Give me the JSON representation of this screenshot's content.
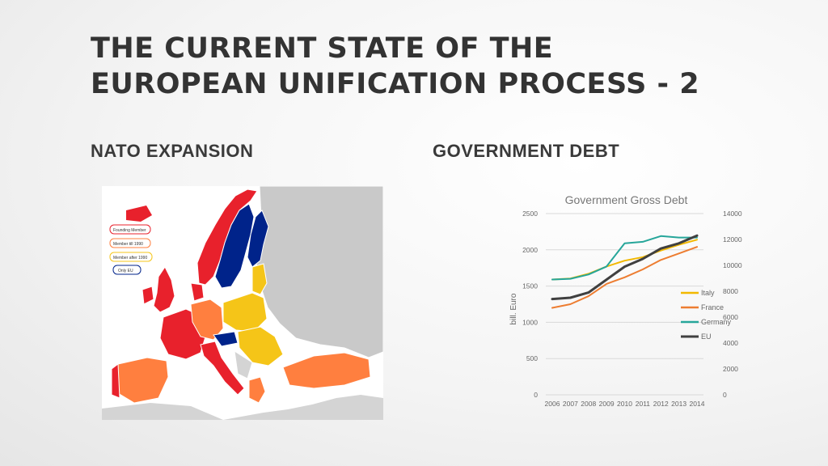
{
  "slide": {
    "title": "THE CURRENT STATE OF THE EUROPEAN UNIFICATION PROCESS - 2",
    "left_heading": "NATO EXPANSION",
    "right_heading": "GOVERNMENT DEBT"
  },
  "map": {
    "legend": [
      {
        "label": "Founding Member",
        "color": "#e8212c"
      },
      {
        "label": "Member till 1990",
        "color": "#ff7f3f"
      },
      {
        "label": "Member after 1990",
        "color": "#f5c518"
      },
      {
        "label": "Only EU",
        "color": "#00238a"
      }
    ]
  },
  "chart_data": {
    "type": "line",
    "title": "Government Gross Debt",
    "ylabel": "bill. Euro",
    "categories": [
      "2006",
      "2007",
      "2008",
      "2009",
      "2010",
      "2011",
      "2012",
      "2013",
      "2014"
    ],
    "y_left": {
      "ticks": [
        0,
        500,
        1000,
        1500,
        2000,
        2500
      ],
      "range": [
        0,
        2500
      ]
    },
    "y_right": {
      "ticks": [
        0,
        2000,
        4000,
        6000,
        8000,
        10000,
        12000,
        14000
      ],
      "range": [
        0,
        14000
      ]
    },
    "grid": true,
    "legend_position": "right",
    "series": [
      {
        "name": "Italy",
        "color": "#f2b800",
        "axis": "left",
        "values": [
          1590,
          1605,
          1670,
          1770,
          1850,
          1900,
          1990,
          2070,
          2140
        ]
      },
      {
        "name": "France",
        "color": "#ed7d31",
        "axis": "left",
        "values": [
          1200,
          1250,
          1360,
          1530,
          1620,
          1730,
          1860,
          1950,
          2040
        ]
      },
      {
        "name": "Germany",
        "color": "#26a69a",
        "axis": "left",
        "values": [
          1590,
          1600,
          1660,
          1770,
          2090,
          2110,
          2190,
          2170,
          2170
        ]
      },
      {
        "name": "EU",
        "color": "#404040",
        "axis": "right",
        "values": [
          7400,
          7500,
          7900,
          8900,
          9900,
          10500,
          11300,
          11700,
          12300
        ]
      }
    ]
  }
}
